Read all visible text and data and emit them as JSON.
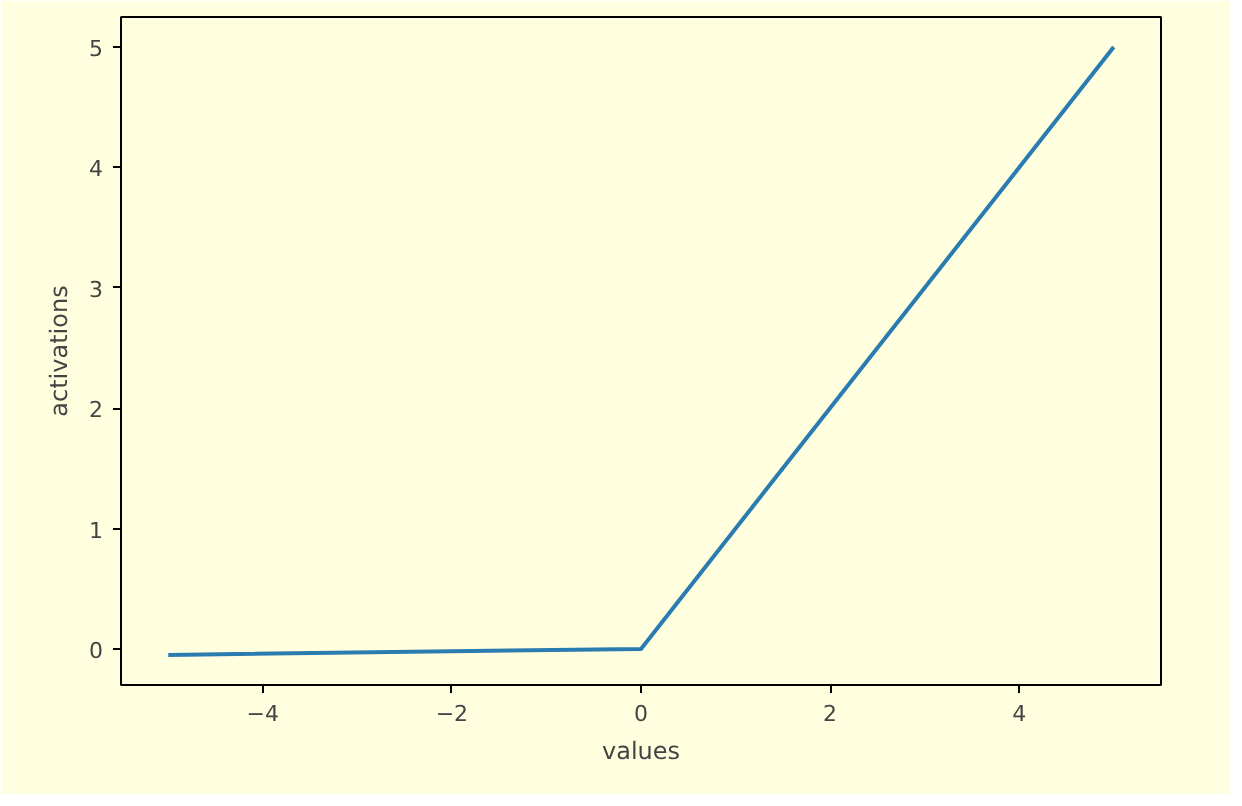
{
  "chart_data": {
    "type": "line",
    "xlabel": "values",
    "ylabel": "activations",
    "x": [
      -5,
      0,
      5
    ],
    "series": [
      {
        "color": "#2a7bb0",
        "values": [
          -0.05,
          0,
          5
        ]
      }
    ],
    "xlim": [
      -5.5,
      5.5
    ],
    "ylim": [
      -0.3,
      5.25
    ],
    "xticks": [
      {
        "value": -4,
        "label": "−4"
      },
      {
        "value": -2,
        "label": "−2"
      },
      0,
      2,
      4
    ],
    "yticks": [
      0,
      1,
      2,
      3,
      4,
      5
    ],
    "grid": false,
    "marker": "none",
    "line_style": "solid"
  }
}
